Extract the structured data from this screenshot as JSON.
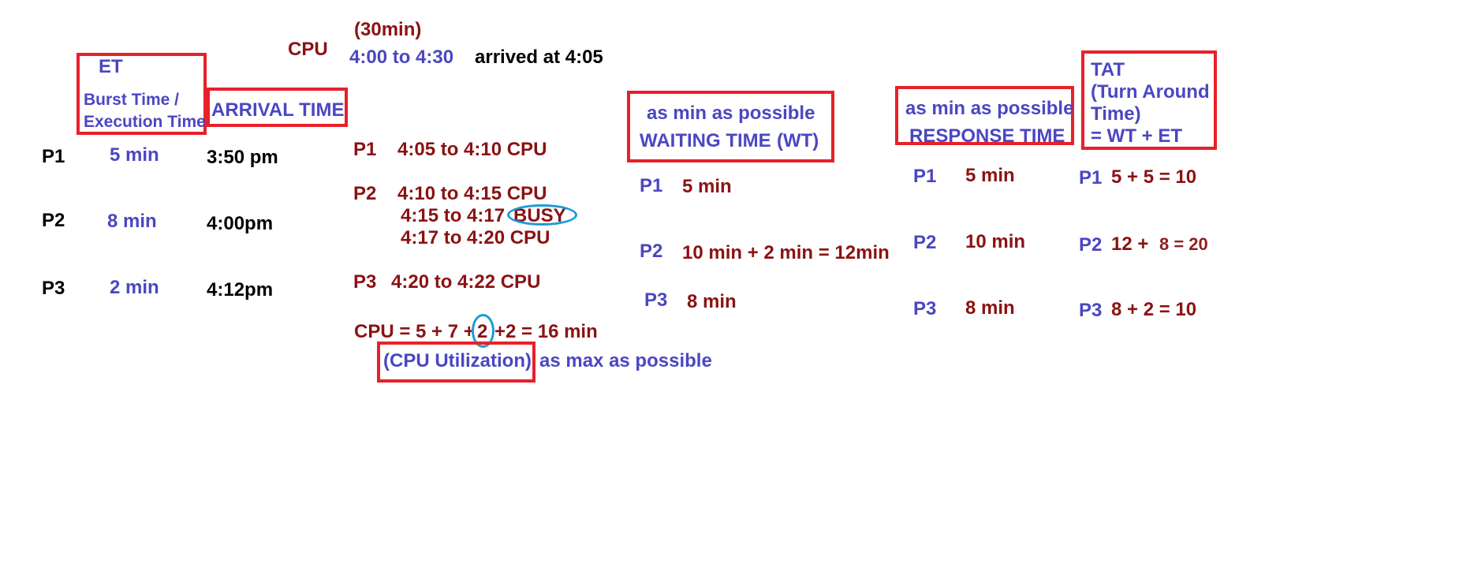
{
  "header": {
    "cpu_label": "CPU",
    "duration": "(30min)",
    "window": "4:00 to 4:30",
    "arrived": "arrived at 4:05"
  },
  "et_column": {
    "title": "ET",
    "subtitle_line1": "Burst Time /",
    "subtitle_line2": "Execution Time",
    "values": [
      "5 min",
      "8  min",
      "2 min"
    ]
  },
  "process_labels": [
    "P1",
    "P2",
    "P3"
  ],
  "arrival_column": {
    "title": "ARRIVAL TIME",
    "values": [
      "3:50 pm",
      "4:00pm",
      "4:12pm"
    ]
  },
  "schedule": {
    "p1": {
      "label": "P1",
      "text": "4:05 to 4:10 CPU"
    },
    "p2": {
      "label": "P2",
      "line1": "4:10  to 4:15  CPU",
      "line2_time": "4:15 to 4:17",
      "line2_busy": "BUSY",
      "line3": "4:17  to 4:20 CPU"
    },
    "p3": {
      "label": "P3",
      "text": "4:20   to  4:22 CPU"
    }
  },
  "cpu_total": {
    "prefix": "CPU = 5 + 7 +",
    "circled": "2",
    "suffix": "+2 = 16 min",
    "utilization_label": "(CPU Utilization)",
    "goal": "as max as possible"
  },
  "waiting_time": {
    "goal": "as min as possible",
    "title": "WAITING TIME",
    "abbr": "(WT)",
    "rows": [
      {
        "label": "P1",
        "value": "5 min"
      },
      {
        "label": "P2",
        "value": "10 min + 2 min = 12min"
      },
      {
        "label": "P3",
        "value": "8 min"
      }
    ]
  },
  "response_time": {
    "goal": "as min as possible",
    "title": "RESPONSE TIME",
    "rows": [
      {
        "label": "P1",
        "value": "5 min"
      },
      {
        "label": "P2",
        "value": "10 min"
      },
      {
        "label": "P3",
        "value": "8 min"
      }
    ]
  },
  "tat": {
    "title": "TAT",
    "line2": "(Turn Around",
    "line3": "Time)",
    "formula": "= WT + ET",
    "rows": [
      {
        "label": "P1",
        "value": "5 + 5 = 10"
      },
      {
        "label": "P2",
        "value_a": "12 +",
        "value_b": "8 = 20"
      },
      {
        "label": "P3",
        "value": "8 + 2 = 10"
      }
    ]
  }
}
